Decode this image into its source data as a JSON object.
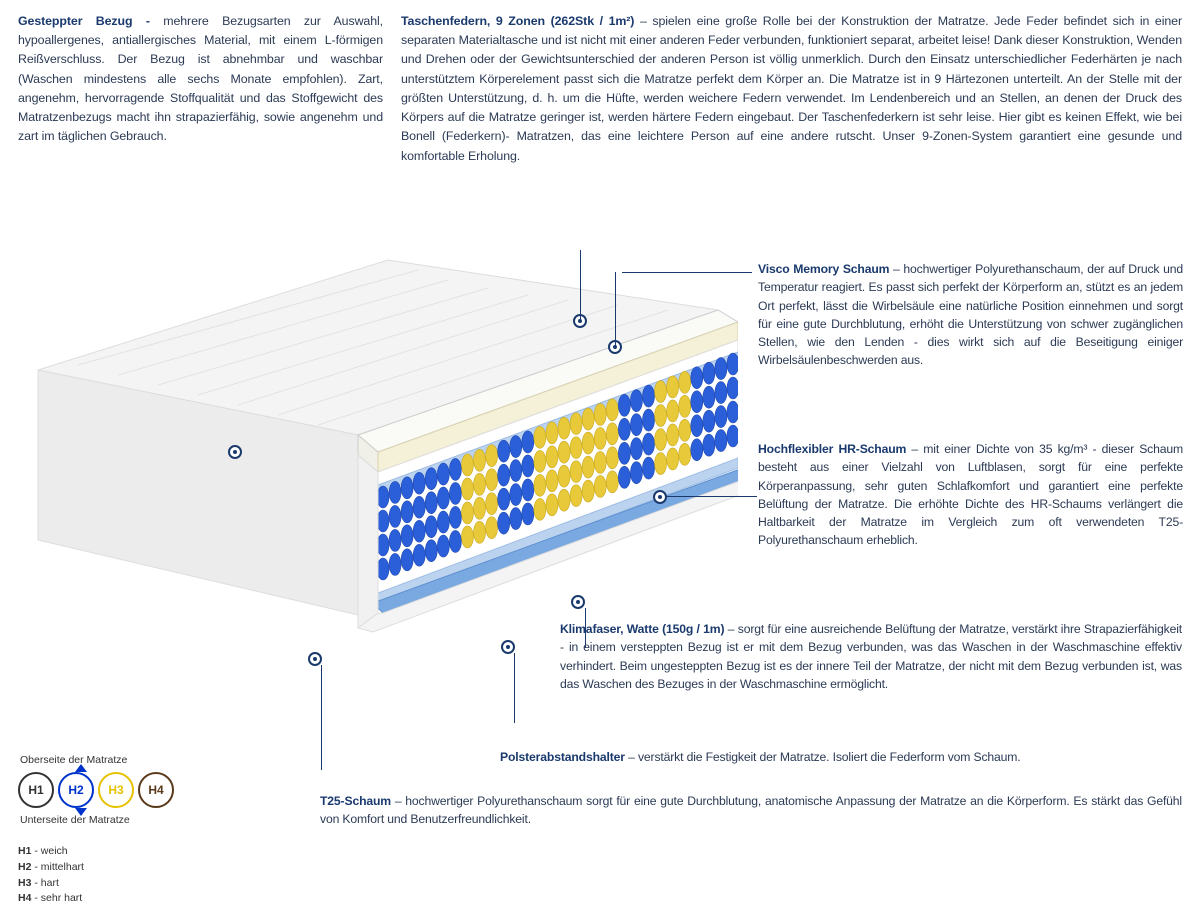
{
  "top": {
    "left": {
      "lead": "Gesteppter Bezug - ",
      "body": "mehrere Bezugsarten zur Auswahl, hypoallergenes, antiallergisches Material, mit einem L-förmigen Reißverschluss. Der Bezug ist abnehmbar und waschbar (Waschen mindestens alle sechs Monate empfohlen). Zart, angenehm, hervorragende Stoffqualität und das Stoffgewicht des Matratzenbezugs macht ihn strapazierfähig, sowie angenehm und zart im täglichen Gebrauch."
    },
    "right": {
      "lead": "Taschenfedern, 9 Zonen (262Stk / 1m²) ",
      "body": "– spielen eine große Rolle bei der Konstruktion der Matratze. Jede Feder befindet sich in einer separaten Materialtasche und ist nicht mit einer anderen Feder verbunden, funktioniert separat, arbeitet leise! Dank dieser Konstruktion, Wenden und Drehen oder der Gewichtsunterschied der anderen Person ist völlig unmerklich. Durch den Einsatz unterschiedlicher Federhärten je nach unterstütztem Körperelement passt sich die Matratze perfekt dem Körper an. Die Matratze ist in 9 Härtezonen unterteilt. An der Stelle mit der größten Unterstützung, d. h. um die Hüfte, werden weichere Federn verwendet. Im Lendenbereich und an Stellen, an denen der Druck des Körpers auf die Matratze geringer ist, werden härtere Federn eingebaut. Der Taschenfederkern ist sehr leise. Hier gibt es keinen Effekt, wie bei Bonell (Federkern)- Matratzen, das eine leichtere Person auf eine andere rutscht. Unser 9-Zonen-System garantiert eine gesunde und komfortable Erholung."
    }
  },
  "callouts": {
    "visco": {
      "lead": "Visco Memory Schaum ",
      "body": "– hochwertiger Polyurethanschaum, der auf Druck und Temperatur reagiert. Es passt sich perfekt der Körperform an, stützt es an jedem Ort perfekt, lässt die Wirbelsäule eine natürliche Position einnehmen und sorgt für eine gute Durchblutung, erhöht die Unterstützung von schwer zugänglichen Stellen, wie den Lenden - dies wirkt sich auf die Beseitigung einiger Wirbelsäulenbeschwerden aus."
    },
    "hr": {
      "lead": "Hochflexibler HR-Schaum ",
      "body": "– mit einer Dichte von 35 kg/m³ - dieser Schaum besteht aus einer Vielzahl von Luftblasen, sorgt für eine perfekte Körperanpassung, sehr guten Schlafkomfort und garantiert eine perfekte Belüftung der Matratze. Die erhöhte Dichte des HR-Schaums verlängert die Haltbarkeit der Matratze im Vergleich zum oft verwendeten T25-Polyurethanschaum erheblich."
    },
    "klima": {
      "lead": "Klimafaser, Watte (150g / 1m) ",
      "body": "– sorgt für eine ausreichende Belüftung der Matratze, verstärkt ihre Strapazierfähigkeit - in einem versteppten Bezug ist er mit dem Bezug verbunden, was das Waschen in der Waschmaschine effektiv verhindert. Beim ungesteppten Bezug ist es der innere Teil der Matratze, der nicht mit dem Bezug verbunden ist, was das Waschen des Bezuges in der Waschmaschine ermöglicht."
    },
    "polster": {
      "lead": "Polsterabstandshalter ",
      "body": "– verstärkt die Festigkeit der Matratze. Isoliert die Federform vom Schaum."
    },
    "t25": {
      "lead": "T25-Schaum ",
      "body": "– hochwertiger Polyurethanschaum sorgt für eine gute Durchblutung, anatomische Anpassung der Matratze an die Körperform. Es stärkt das Gefühl von Komfort und Benutzerfreundlichkeit."
    }
  },
  "legend": {
    "top_label": "Oberseite der Matratze",
    "bottom_label": "Unterseite der Matratze",
    "circles": [
      {
        "label": "H1",
        "color": "#333333"
      },
      {
        "label": "H2",
        "color": "#0033cc"
      },
      {
        "label": "H3",
        "color": "#e6c200"
      },
      {
        "label": "H4",
        "color": "#5a3a1a"
      }
    ],
    "items": [
      {
        "k": "H1",
        "v": " - weich"
      },
      {
        "k": "H2",
        "v": " - mittelhart"
      },
      {
        "k": "H3",
        "v": " - hart"
      },
      {
        "k": "H4",
        "v": " - sehr hart"
      }
    ]
  },
  "colors": {
    "spring_blue": "#2b5fd9",
    "spring_yellow": "#e8c93a",
    "foam_cream": "#f5f0d8",
    "foam_white": "#f8f8f5",
    "base_blue": "#7aa8e0",
    "cover": "#eeeeee"
  }
}
